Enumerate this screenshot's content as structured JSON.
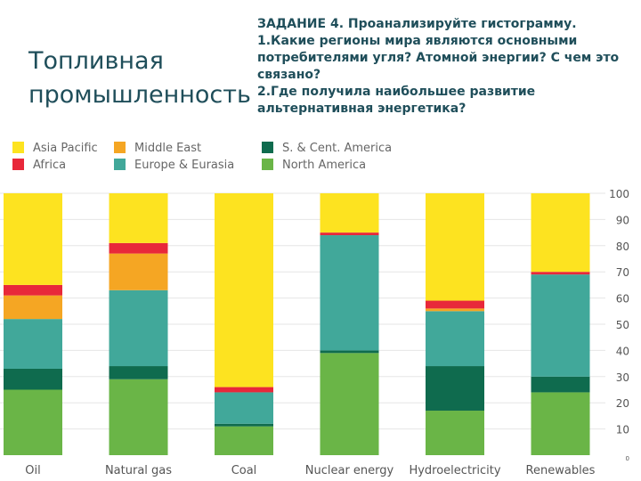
{
  "slide": {
    "title_line1": "Топливная",
    "title_line2": "промышленность",
    "task_heading": "ЗАДАНИЕ 4. Проанализируйте гистограмму.",
    "task_q1": "1.Какие регионы мира являются основными потребителями угля? Атомной энергии? С чем это связано?",
    "task_q2": "2.Где получила наибольшее развитие альтернативная энергетика?"
  },
  "chart_data": {
    "type": "bar",
    "stacked": true,
    "title": "",
    "xlabel": "",
    "ylabel": "",
    "ylim": [
      0,
      100
    ],
    "yticks": [
      0,
      10,
      20,
      30,
      40,
      50,
      60,
      70,
      80,
      90,
      100
    ],
    "y_axis_side": "right",
    "grid": true,
    "legend_position": "top",
    "categories": [
      "Oil",
      "Natural gas",
      "Coal",
      "Nuclear energy",
      "Hydroelectricity",
      "Renewables"
    ],
    "series": [
      {
        "name": "North America",
        "color": "#6ab547",
        "values": [
          25,
          29,
          11,
          39,
          17,
          24
        ]
      },
      {
        "name": "S. & Cent. America",
        "color": "#0f6b4e",
        "values": [
          8,
          5,
          1,
          1,
          17,
          6
        ]
      },
      {
        "name": "Europe & Eurasia",
        "color": "#41a89a",
        "values": [
          19,
          29,
          12,
          44,
          21,
          39
        ]
      },
      {
        "name": "Middle East",
        "color": "#f5a623",
        "values": [
          9,
          14,
          0,
          0,
          1,
          0
        ]
      },
      {
        "name": "Africa",
        "color": "#e8283a",
        "values": [
          4,
          4,
          2,
          1,
          3,
          1
        ]
      },
      {
        "name": "Asia Pacific",
        "color": "#fde320",
        "values": [
          35,
          19,
          74,
          15,
          41,
          30
        ]
      }
    ],
    "legend": [
      {
        "name": "Asia Pacific",
        "color": "#fde320"
      },
      {
        "name": "Middle East",
        "color": "#f5a623"
      },
      {
        "name": "S. & Cent. America",
        "color": "#0f6b4e"
      },
      {
        "name": "Africa",
        "color": "#e8283a"
      },
      {
        "name": "Europe & Eurasia",
        "color": "#41a89a"
      },
      {
        "name": "North America",
        "color": "#6ab547"
      }
    ]
  }
}
